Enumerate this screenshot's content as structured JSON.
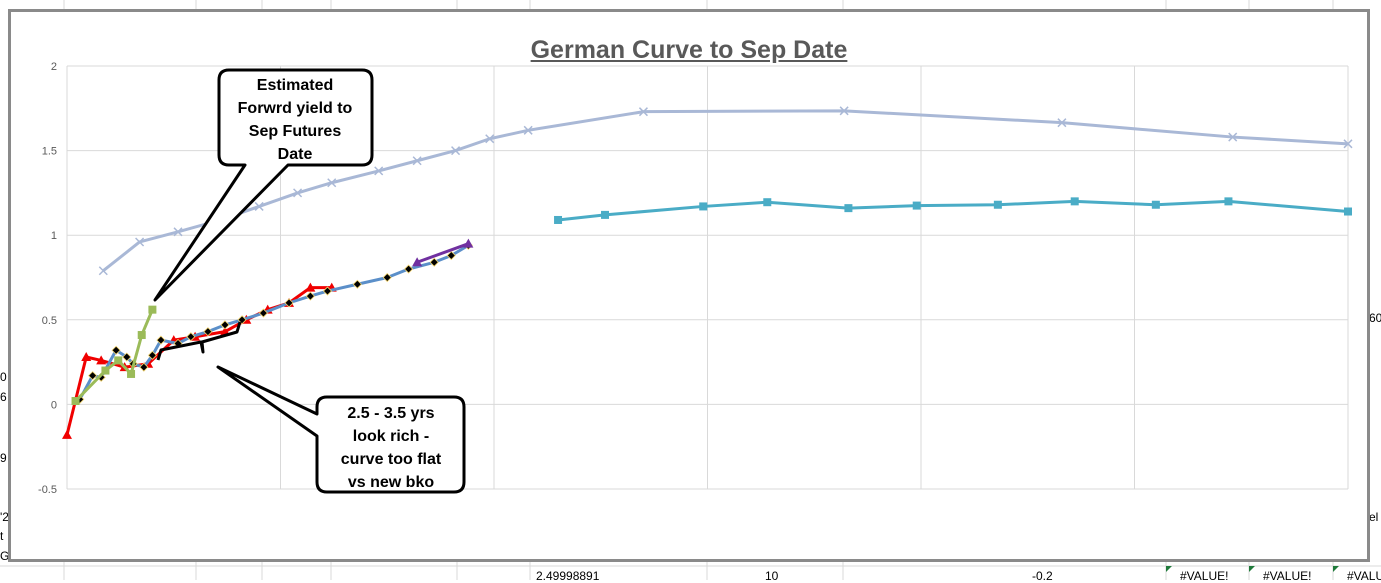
{
  "sheet": {
    "left_fragments": [
      "0",
      "6",
      "9",
      "'2",
      "t",
      "G"
    ],
    "right_fragments": [
      "60",
      "el"
    ],
    "bottom_cells": [
      "2.49998891",
      "10",
      "-0.2",
      "#VALUE!",
      "#VALUE!",
      "#VALUE!"
    ]
  },
  "chart_data": {
    "type": "line",
    "title": "German Curve to Sep Date",
    "xlabel": "",
    "ylabel": "",
    "ylim": [
      -0.5,
      2
    ],
    "xlim": [
      0,
      30
    ],
    "yticks": [
      "-0.5",
      "0",
      "0.5",
      "1",
      "1.5",
      "2"
    ],
    "grid": true,
    "legend": "none",
    "series": [
      {
        "color": "#a9b8d6",
        "marker": "x",
        "x": [
          0.85,
          1.7,
          2.6,
          3.6,
          4.5,
          5.4,
          6.2,
          7.3,
          8.2,
          9.1,
          9.9,
          10.8,
          13.5,
          18.2,
          23.3,
          27.3,
          30
        ],
        "y": [
          0.79,
          0.96,
          1.02,
          1.09,
          1.17,
          1.25,
          1.31,
          1.38,
          1.44,
          1.5,
          1.57,
          1.62,
          1.73,
          1.735,
          1.665,
          1.58,
          1.54
        ]
      },
      {
        "color": "#4aacc6",
        "marker": "square",
        "x": [
          11.5,
          12.6,
          14.9,
          16.4,
          18.3,
          19.9,
          21.8,
          23.6,
          25.5,
          27.2,
          30
        ],
        "y": [
          1.09,
          1.12,
          1.17,
          1.195,
          1.16,
          1.175,
          1.18,
          1.2,
          1.18,
          1.2,
          1.14
        ]
      },
      {
        "color": "#f00000",
        "marker": "triangle",
        "x": [
          0,
          0.45,
          0.8,
          1.35,
          1.9,
          2.5,
          3.0,
          3.7,
          4.2,
          4.7,
          5.2,
          5.7,
          6.2
        ],
        "y": [
          -0.18,
          0.28,
          0.26,
          0.22,
          0.24,
          0.38,
          0.4,
          0.43,
          0.5,
          0.56,
          0.6,
          0.69,
          0.69
        ]
      },
      {
        "color": "#5b8fc9",
        "marker": "diamond",
        "x": [
          0.3,
          0.6,
          0.8,
          1.15,
          1.4,
          1.55,
          1.8,
          2.0,
          2.2,
          2.6,
          2.9,
          3.3,
          3.7,
          4.1,
          4.6,
          5.2,
          5.7,
          6.1,
          6.8,
          7.5,
          8.0,
          8.6,
          9.0,
          9.4
        ],
        "y": [
          0.03,
          0.17,
          0.16,
          0.32,
          0.28,
          0.24,
          0.22,
          0.29,
          0.38,
          0.36,
          0.4,
          0.43,
          0.47,
          0.5,
          0.54,
          0.6,
          0.64,
          0.67,
          0.71,
          0.75,
          0.8,
          0.84,
          0.88,
          0.94
        ]
      },
      {
        "color": "#9bbb59",
        "marker": "square",
        "x": [
          0.2,
          0.9,
          1.2,
          1.5,
          1.75,
          2.0
        ],
        "y": [
          0.02,
          0.2,
          0.26,
          0.18,
          0.41,
          0.56
        ]
      },
      {
        "color": "#7030a0",
        "marker": "triangle",
        "x": [
          8.2,
          9.4
        ],
        "y": [
          0.84,
          0.95
        ]
      }
    ]
  },
  "annotations": {
    "callout_top": [
      "Estimated",
      "Forwrd yield to",
      "Sep Futures",
      "Date"
    ],
    "callout_bottom": [
      "2.5 - 3.5 yrs",
      "look rich -",
      "curve too flat",
      "vs new bko"
    ]
  }
}
